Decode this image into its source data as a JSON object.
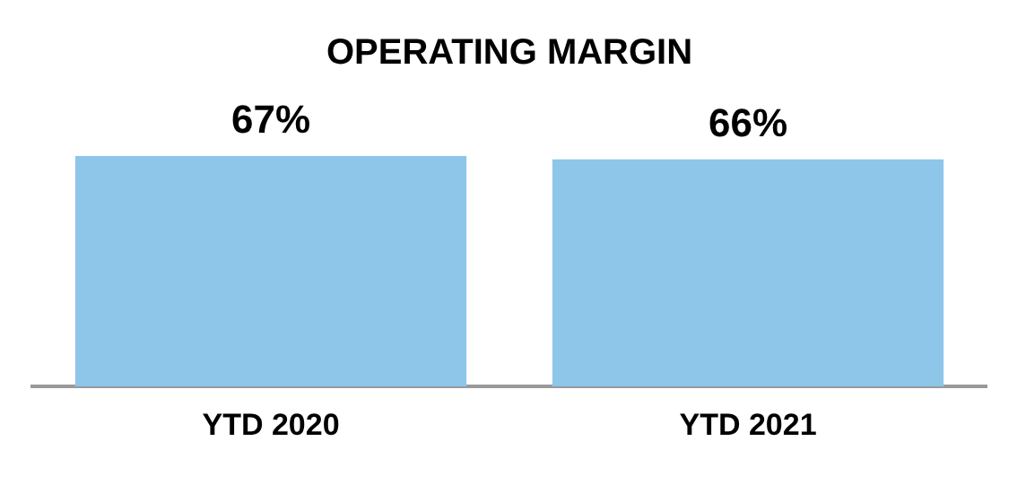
{
  "chart_data": {
    "type": "bar",
    "title": "OPERATING MARGIN",
    "categories": [
      "YTD 2020",
      "YTD 2021"
    ],
    "values": [
      67,
      66
    ],
    "value_labels": [
      "67%",
      "66%"
    ],
    "color": "#8ec6ea",
    "grid": false,
    "legend": false
  }
}
